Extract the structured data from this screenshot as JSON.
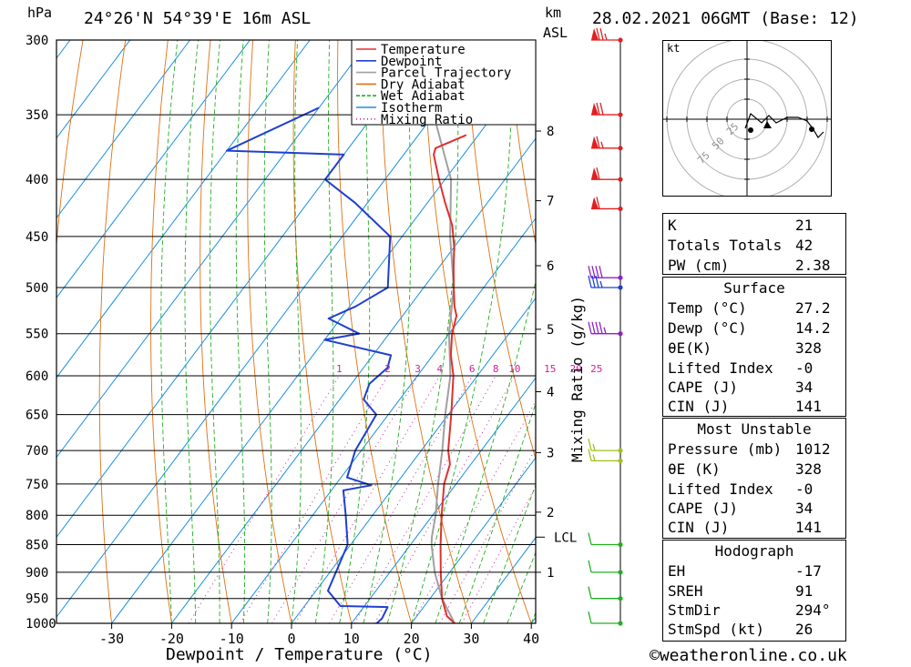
{
  "header": {
    "pressure_unit": "hPa",
    "location": "24°26'N  54°39'E  16m  ASL",
    "km_label": "km",
    "asl_label": "ASL",
    "datetime": "28.02.2021  06GMT  (Base: 12)"
  },
  "chart_data": {
    "type": "skew-t",
    "xlabel": "Dewpoint / Temperature (°C)",
    "ylabel": "hPa",
    "mixing_ratio_axis_label": "Mixing Ratio (g/kg)",
    "x_ticks": [
      -30,
      -20,
      -10,
      0,
      10,
      20,
      30,
      40
    ],
    "pressure_levels": [
      300,
      350,
      400,
      450,
      500,
      550,
      600,
      650,
      700,
      750,
      800,
      850,
      900,
      950,
      1000
    ],
    "height_km_ticks": [
      1,
      2,
      3,
      4,
      5,
      6,
      7,
      8
    ],
    "lcl_label": "LCL",
    "lcl_pressure": 837,
    "mixing_ratio_labels": [
      1,
      2,
      3,
      4,
      6,
      8,
      10,
      15,
      20,
      25
    ],
    "legend": [
      {
        "name": "Temperature",
        "color": "#e03030"
      },
      {
        "name": "Dewpoint",
        "color": "#2040d0"
      },
      {
        "name": "Parcel Trajectory",
        "color": "#a0a0a0"
      },
      {
        "name": "Dry Adiabat",
        "color": "#e07010"
      },
      {
        "name": "Wet Adiabat",
        "color": "#20b020"
      },
      {
        "name": "Isotherm",
        "color": "#1890e0"
      },
      {
        "name": "Mixing Ratio",
        "color": "#d020a0"
      }
    ],
    "series": [
      {
        "name": "Temperature",
        "points": [
          [
            1000,
            27.2
          ],
          [
            985,
            25
          ],
          [
            950,
            22
          ],
          [
            900,
            18.5
          ],
          [
            850,
            15
          ],
          [
            800,
            11.5
          ],
          [
            750,
            8
          ],
          [
            720,
            6.5
          ],
          [
            700,
            4.5
          ],
          [
            650,
            0.5
          ],
          [
            600,
            -4
          ],
          [
            575,
            -7
          ],
          [
            550,
            -9.5
          ],
          [
            530,
            -11
          ],
          [
            520,
            -12.5
          ],
          [
            500,
            -15
          ],
          [
            480,
            -17.5
          ],
          [
            460,
            -20
          ],
          [
            440,
            -23
          ],
          [
            420,
            -27
          ],
          [
            400,
            -31
          ],
          [
            380,
            -35
          ],
          [
            375,
            -35.5
          ],
          [
            365,
            -32
          ]
        ]
      },
      {
        "name": "Dewpoint",
        "points": [
          [
            1000,
            14.2
          ],
          [
            990,
            14.5
          ],
          [
            967,
            14
          ],
          [
            965,
            6
          ],
          [
            935,
            2
          ],
          [
            900,
            1
          ],
          [
            850,
            -0.5
          ],
          [
            800,
            -4.5
          ],
          [
            760,
            -8
          ],
          [
            752,
            -4
          ],
          [
            740,
            -9
          ],
          [
            700,
            -11
          ],
          [
            650,
            -12
          ],
          [
            630,
            -16
          ],
          [
            610,
            -17
          ],
          [
            590,
            -16
          ],
          [
            575,
            -17
          ],
          [
            557,
            -30
          ],
          [
            550,
            -25
          ],
          [
            533,
            -32
          ],
          [
            520,
            -29
          ],
          [
            500,
            -26
          ],
          [
            450,
            -32
          ],
          [
            420,
            -42
          ],
          [
            400,
            -50
          ],
          [
            380,
            -50
          ],
          [
            377,
            -70
          ],
          [
            345,
            -60
          ]
        ]
      },
      {
        "name": "Parcel Trajectory",
        "points": [
          [
            1000,
            27.2
          ],
          [
            950,
            22
          ],
          [
            900,
            17.5
          ],
          [
            850,
            13.5
          ],
          [
            837,
            12.6
          ],
          [
            800,
            10.5
          ],
          [
            750,
            7
          ],
          [
            700,
            3.5
          ],
          [
            650,
            -0.5
          ],
          [
            600,
            -4.5
          ],
          [
            550,
            -10
          ],
          [
            500,
            -15
          ],
          [
            450,
            -22
          ],
          [
            400,
            -29
          ],
          [
            350,
            -40
          ],
          [
            300,
            -52
          ]
        ]
      }
    ],
    "wind_barbs": [
      {
        "p": 300,
        "speed_kt": 75
      },
      {
        "p": 350,
        "speed_kt": 70
      },
      {
        "p": 375,
        "speed_kt": 65
      },
      {
        "p": 400,
        "speed_kt": 60
      },
      {
        "p": 425,
        "speed_kt": 60
      },
      {
        "p": 490,
        "speed_kt": 40
      },
      {
        "p": 500,
        "speed_kt": 35
      },
      {
        "p": 550,
        "speed_kt": 45
      },
      {
        "p": 700,
        "speed_kt": 15
      },
      {
        "p": 715,
        "speed_kt": 15
      },
      {
        "p": 850,
        "speed_kt": 10
      },
      {
        "p": 900,
        "speed_kt": 10
      },
      {
        "p": 950,
        "speed_kt": 10
      },
      {
        "p": 1000,
        "speed_kt": 10
      }
    ]
  },
  "hodograph": {
    "unit_label": "kt",
    "ring_labels": [
      "25",
      "50",
      "75"
    ]
  },
  "indices": [
    {
      "label": "K",
      "value": "21"
    },
    {
      "label": "Totals Totals",
      "value": "42"
    },
    {
      "label": "PW (cm)",
      "value": "2.38"
    }
  ],
  "surface": {
    "title": "Surface",
    "rows": [
      {
        "label": "Temp (°C)",
        "value": "27.2"
      },
      {
        "label": "Dewp (°C)",
        "value": "14.2"
      },
      {
        "label": "θE(K)",
        "value": "328"
      },
      {
        "label": "Lifted Index",
        "value": "-0"
      },
      {
        "label": "CAPE (J)",
        "value": "34"
      },
      {
        "label": "CIN (J)",
        "value": "141"
      }
    ]
  },
  "most_unstable": {
    "title": "Most Unstable",
    "rows": [
      {
        "label": "Pressure (mb)",
        "value": "1012"
      },
      {
        "label": "θE (K)",
        "value": "328"
      },
      {
        "label": "Lifted Index",
        "value": "-0"
      },
      {
        "label": "CAPE (J)",
        "value": "34"
      },
      {
        "label": "CIN (J)",
        "value": "141"
      }
    ]
  },
  "hodograph_table": {
    "title": "Hodograph",
    "rows": [
      {
        "label": "EH",
        "value": "-17"
      },
      {
        "label": "SREH",
        "value": "91"
      },
      {
        "label": "StmDir",
        "value": "294°"
      },
      {
        "label": "StmSpd (kt)",
        "value": "26"
      }
    ]
  },
  "credit": "©weatheronline.co.uk"
}
